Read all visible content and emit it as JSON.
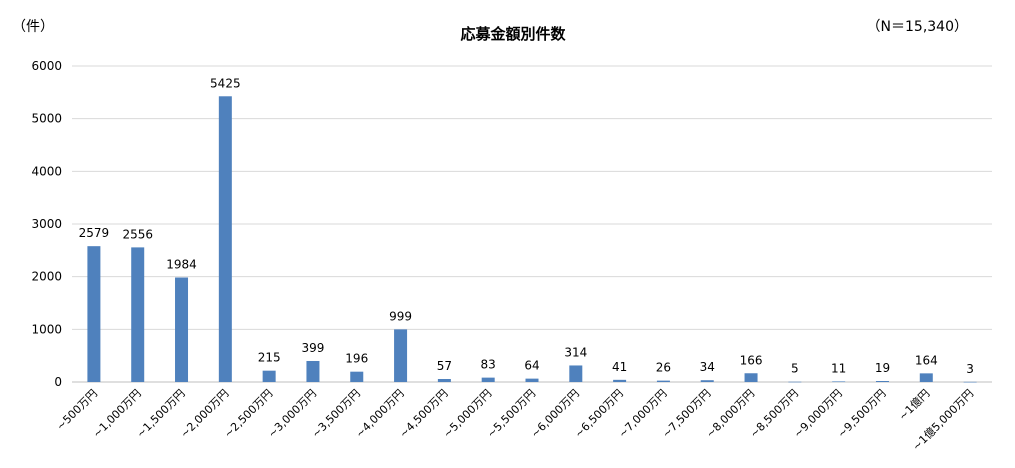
{
  "chart_data": {
    "type": "bar",
    "title": "応募金額別件数",
    "unit_label": "（件）",
    "sample_size": "（N＝15,340）",
    "categories": [
      "~500万円",
      "~1,000万円",
      "~1,500万円",
      "~2,000万円",
      "~2,500万円",
      "~3,000万円",
      "~3,500万円",
      "~4,000万円",
      "~4,500万円",
      "~5,000万円",
      "~5,500万円",
      "~6,000万円",
      "~6,500万円",
      "~7,000万円",
      "~7,500万円",
      "~8,000万円",
      "~8,500万円",
      "~9,000万円",
      "~9,500万円",
      "~1億円",
      "~1億5,000万円"
    ],
    "values": [
      2579,
      2556,
      1984,
      5425,
      215,
      399,
      196,
      999,
      57,
      83,
      64,
      314,
      41,
      26,
      34,
      166,
      5,
      11,
      19,
      164,
      3
    ],
    "ylim": [
      0,
      6000
    ],
    "yticks": [
      0,
      1000,
      2000,
      3000,
      4000,
      5000,
      6000
    ],
    "grid": true,
    "bar_color": "#4f81bd",
    "grid_color": "#d9d9d9"
  }
}
